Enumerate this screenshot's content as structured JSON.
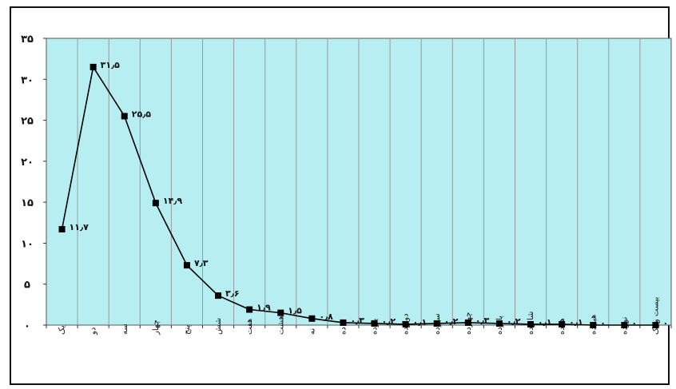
{
  "chart_data": {
    "type": "line",
    "title": "",
    "xlabel": "",
    "ylabel": "",
    "ylim": [
      0,
      35
    ],
    "yticks": [
      0,
      5,
      10,
      15,
      20,
      25,
      30,
      35
    ],
    "ytick_labels": [
      "۰",
      "۵",
      "۱۰",
      "۱۵",
      "۲۰",
      "۲۵",
      "۳۰",
      "۳۵"
    ],
    "grid": "vertical",
    "plot_background": "#b7eef1",
    "line_color": "#000000",
    "marker": "square",
    "categories": [
      "یک",
      "دو",
      "سه",
      "چهار",
      "پنج",
      "شش",
      "هفت",
      "هشت",
      "نه",
      "ده",
      "یازده",
      "دوازده",
      "سیزده",
      "چهارده",
      "پانزده",
      "شانزده",
      "هفده",
      "هیجده",
      "نوزده",
      "بیست و یک"
    ],
    "values": [
      11.7,
      31.5,
      25.5,
      14.9,
      7.3,
      3.6,
      1.9,
      1.5,
      0.8,
      0.3,
      0.2,
      0.1,
      0.2,
      0.3,
      0.2,
      0.1,
      0.1,
      0.0,
      0.0,
      0.0
    ],
    "data_labels": [
      "۱۱٫۷",
      "۳۱٫۵",
      "۲۵٫۵",
      "۱۴٫۹",
      "۷٫۳",
      "۳٫۶",
      "۱٫۹",
      "۱٫۵",
      "۰٫۸",
      "۰٫۳",
      "۰٫۲",
      "۰٫۱",
      "۰٫۲",
      "۰٫۳",
      "۰٫۲",
      "۰٫۱",
      "۰٫۱",
      "۰",
      "۰",
      "۰"
    ]
  }
}
